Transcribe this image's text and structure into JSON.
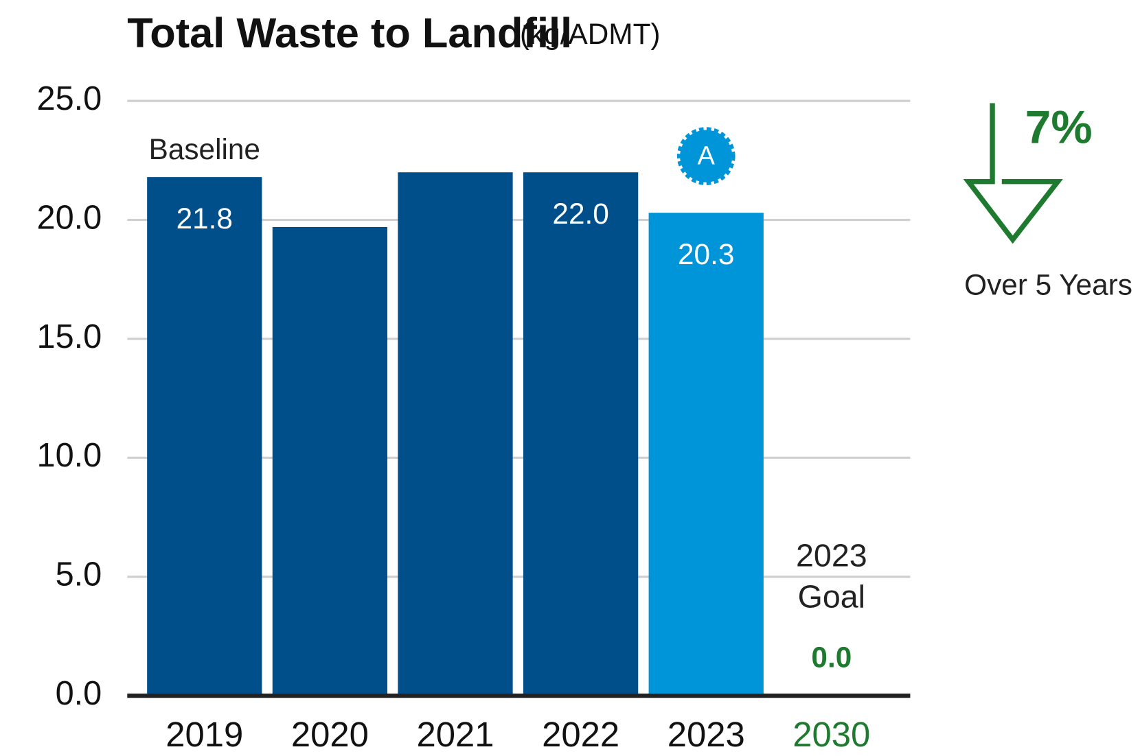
{
  "chart_data": {
    "type": "bar",
    "title": "Total Waste to Landfill",
    "units": "(kg/ADMT)",
    "categories": [
      "2019",
      "2020",
      "2021",
      "2022",
      "2023",
      "2030"
    ],
    "values": [
      21.8,
      19.7,
      22.0,
      22.0,
      20.3,
      0.0
    ],
    "value_labels": [
      "21.8",
      null,
      null,
      "22.0",
      "20.3",
      "0.0"
    ],
    "colors": [
      "#004f8b",
      "#004f8b",
      "#004f8b",
      "#004f8b",
      "#0094d8",
      "#1e7a2e"
    ],
    "category_colors": [
      "#111111",
      "#111111",
      "#111111",
      "#111111",
      "#111111",
      "#1e7a2e"
    ],
    "ylim": [
      0,
      25
    ],
    "yticks": [
      {
        "value": 0,
        "label": "0.0"
      },
      {
        "value": 5,
        "label": "5.0"
      },
      {
        "value": 10,
        "label": "10.0"
      },
      {
        "value": 15,
        "label": "15.0"
      },
      {
        "value": 20,
        "label": "20.0"
      },
      {
        "value": 25,
        "label": "25.0"
      }
    ],
    "grid": true,
    "baseline_label": "Baseline",
    "badge": "A",
    "goal_label": [
      "2023",
      "Goal"
    ],
    "change": "7%",
    "change_note": "Over 5 Years"
  }
}
